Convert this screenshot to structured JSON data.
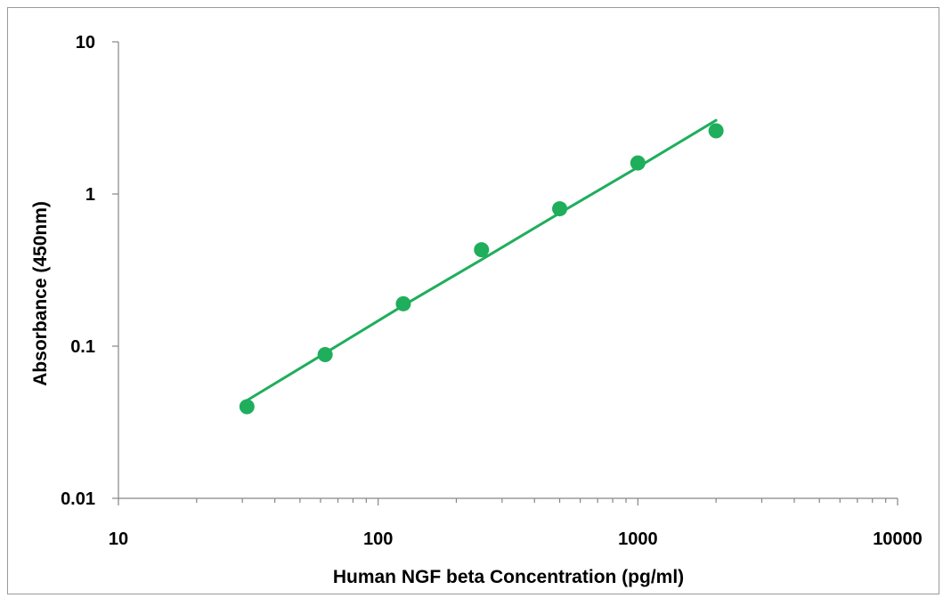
{
  "chart_data": {
    "type": "scatter",
    "title": "",
    "xlabel": "Human NGF beta Concentration (pg/ml)",
    "ylabel": "Absorbance (450nm)",
    "x_scale": "log",
    "y_scale": "log",
    "xlim": [
      10,
      10000
    ],
    "ylim": [
      0.01,
      10
    ],
    "x_ticks": [
      "10",
      "100",
      "1000",
      "10000"
    ],
    "y_ticks": [
      "0.01",
      "0.1",
      "1",
      "10"
    ],
    "grid": false,
    "legend": "none",
    "series": [
      {
        "marker_color": "#1fae5c",
        "x": [
          31.25,
          62.5,
          125,
          250,
          500,
          1000,
          2000
        ],
        "y": [
          0.04,
          0.088,
          0.19,
          0.43,
          0.8,
          1.6,
          2.6
        ]
      }
    ],
    "fit_line": {
      "color": "#1fae5c",
      "x": [
        31.25,
        62.5,
        125,
        250,
        500,
        1000,
        2000
      ],
      "y": [
        0.044,
        0.09,
        0.185,
        0.37,
        0.75,
        1.5,
        3.05
      ]
    }
  }
}
